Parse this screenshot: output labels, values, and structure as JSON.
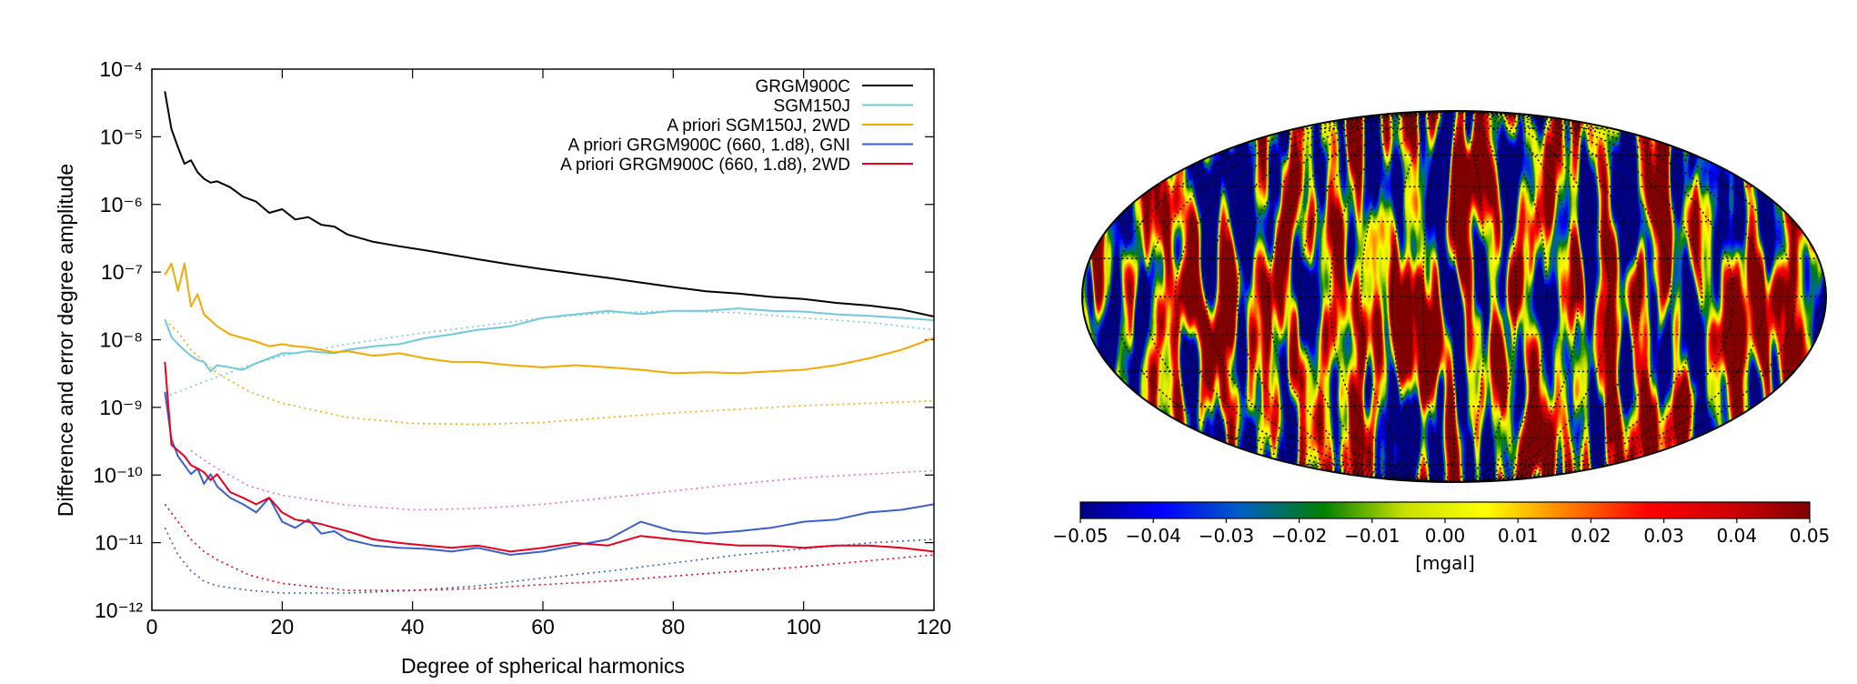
{
  "chart_data": [
    {
      "type": "line",
      "x_label": "Degree of spherical harmonics",
      "y_label": "Difference and error degree amplitude",
      "xlim": [
        0,
        120
      ],
      "xticks": [
        0,
        20,
        40,
        60,
        80,
        100,
        120
      ],
      "ylim": [
        1e-12,
        0.0001
      ],
      "log_y": true,
      "yticks": [
        {
          "value": 1e-12,
          "label": "10⁻¹²"
        },
        {
          "value": 1e-11,
          "label": "10⁻¹¹"
        },
        {
          "value": 1e-10,
          "label": "10⁻¹⁰"
        },
        {
          "value": 1e-09,
          "label": "10⁻⁹"
        },
        {
          "value": 1e-08,
          "label": "10⁻⁸"
        },
        {
          "value": 1e-07,
          "label": "10⁻⁷"
        },
        {
          "value": 1e-06,
          "label": "10⁻⁶"
        },
        {
          "value": 1e-05,
          "label": "10⁻⁵"
        },
        {
          "value": 0.0001,
          "label": "10⁻⁴"
        }
      ],
      "legend": "upper right",
      "series": [
        {
          "name": "GRGM900C",
          "color": "#000000",
          "dashed": false,
          "x": [
            2,
            3,
            4,
            5,
            6,
            7,
            8,
            9,
            10,
            12,
            14,
            16,
            18,
            20,
            22,
            24,
            26,
            28,
            30,
            34,
            38,
            42,
            46,
            50,
            55,
            60,
            65,
            70,
            75,
            80,
            85,
            90,
            95,
            100,
            105,
            110,
            115,
            120
          ],
          "values": [
            4.7e-05,
            1.3e-05,
            7e-06,
            4e-06,
            4.5e-06,
            3e-06,
            2.4e-06,
            2.1e-06,
            2.2e-06,
            1.8e-06,
            1.3e-06,
            1.1e-06,
            7.5e-07,
            8.5e-07,
            6e-07,
            6.5e-07,
            5e-07,
            4.7e-07,
            3.6e-07,
            2.8e-07,
            2.4e-07,
            2.1e-07,
            1.8e-07,
            1.55e-07,
            1.3e-07,
            1.1e-07,
            9.5e-08,
            8.2e-08,
            7e-08,
            6e-08,
            5.2e-08,
            4.8e-08,
            4.3e-08,
            4e-08,
            3.5e-08,
            3.2e-08,
            2.8e-08,
            2.2e-08
          ]
        },
        {
          "name": "SGM150J",
          "color": "#72c8dc",
          "dashed": false,
          "x": [
            2,
            3,
            4,
            5,
            6,
            7,
            8,
            9,
            10,
            12,
            14,
            16,
            18,
            20,
            22,
            24,
            26,
            28,
            30,
            34,
            38,
            42,
            46,
            50,
            55,
            60,
            65,
            70,
            75,
            80,
            85,
            90,
            95,
            100,
            105,
            110,
            115,
            120
          ],
          "values": [
            2e-08,
            1.1e-08,
            8.6e-09,
            7e-09,
            5.8e-09,
            5e-09,
            4.7e-09,
            3.4e-09,
            4.2e-09,
            3.9e-09,
            3.6e-09,
            4.5e-09,
            5.3e-09,
            6.3e-09,
            6.3e-09,
            6.8e-09,
            6.5e-09,
            6.3e-09,
            7.1e-09,
            8e-09,
            8.6e-09,
            1.06e-08,
            1.2e-08,
            1.4e-08,
            1.58e-08,
            2.1e-08,
            2.37e-08,
            2.67e-08,
            2.4e-08,
            2.67e-08,
            2.67e-08,
            2.9e-08,
            2.67e-08,
            2.6e-08,
            2.37e-08,
            2.25e-08,
            2.1e-08,
            1.94e-08
          ]
        },
        {
          "name": "A priori SGM150J, 2WD",
          "color": "#f5a800",
          "dashed": false,
          "x": [
            2,
            3,
            4,
            5,
            6,
            7,
            8,
            9,
            10,
            12,
            14,
            16,
            18,
            20,
            22,
            24,
            26,
            28,
            30,
            34,
            38,
            42,
            46,
            50,
            55,
            60,
            65,
            70,
            75,
            80,
            85,
            90,
            95,
            100,
            105,
            110,
            115,
            120
          ],
          "values": [
            9e-08,
            1.34e-07,
            5.3e-08,
            1.34e-07,
            3.1e-08,
            4.7e-08,
            2.37e-08,
            1.94e-08,
            1.58e-08,
            1.2e-08,
            1.06e-08,
            9.4e-09,
            8e-09,
            8.6e-09,
            8e-09,
            7.7e-09,
            7.1e-09,
            6.5e-09,
            6.8e-09,
            5.8e-09,
            6.3e-09,
            5.3e-09,
            4.7e-09,
            4.7e-09,
            4.2e-09,
            3.9e-09,
            4.2e-09,
            3.9e-09,
            3.6e-09,
            3.2e-09,
            3.3e-09,
            3.2e-09,
            3.4e-09,
            3.6e-09,
            4.2e-09,
            5.3e-09,
            7.1e-09,
            1.06e-08
          ]
        },
        {
          "name": "A priori GRGM900C (660, 1.d8), GNI",
          "color": "#3a5fcd",
          "dashed": false,
          "x": [
            2,
            3,
            4,
            5,
            6,
            7,
            8,
            9,
            10,
            12,
            14,
            16,
            18,
            20,
            22,
            24,
            26,
            28,
            30,
            34,
            38,
            42,
            46,
            50,
            55,
            60,
            65,
            70,
            75,
            80,
            85,
            90,
            95,
            100,
            105,
            110,
            115,
            120
          ],
          "values": [
            1.7e-09,
            3.4e-10,
            1.9e-10,
            1.4e-10,
            1.03e-10,
            1.25e-10,
            7.4e-11,
            1.03e-10,
            6.8e-11,
            4.6e-11,
            3.7e-11,
            2.8e-11,
            4.6e-11,
            2.04e-11,
            1.66e-11,
            2.2e-11,
            1.36e-11,
            1.48e-11,
            1.12e-11,
            9.1e-12,
            8.4e-12,
            8.1e-12,
            7.4e-12,
            8.4e-12,
            6.6e-12,
            7.4e-12,
            9.1e-12,
            1.12e-11,
            2.04e-11,
            1.48e-11,
            1.36e-11,
            1.48e-11,
            1.66e-11,
            2.04e-11,
            2.2e-11,
            2.8e-11,
            3.06e-11,
            3.7e-11
          ]
        },
        {
          "name": "A priori GRGM900C (660, 1.d8), 2WD",
          "color": "#e8001c",
          "dashed": false,
          "x": [
            2,
            3,
            4,
            5,
            6,
            7,
            8,
            9,
            10,
            12,
            14,
            16,
            18,
            20,
            22,
            24,
            26,
            28,
            30,
            34,
            38,
            42,
            46,
            50,
            55,
            60,
            65,
            70,
            75,
            80,
            85,
            90,
            95,
            100,
            105,
            110,
            115,
            120
          ],
          "values": [
            4.7e-09,
            2.8e-10,
            2.3e-10,
            1.9e-10,
            1.4e-10,
            1.25e-10,
            1.1e-10,
            8.4e-11,
            1.03e-10,
            5.6e-11,
            4.6e-11,
            3.7e-11,
            4.6e-11,
            2.8e-11,
            2.2e-11,
            2.04e-11,
            1.88e-11,
            1.66e-11,
            1.48e-11,
            1.12e-11,
            9.9e-12,
            9.1e-12,
            8.4e-12,
            9.1e-12,
            7.4e-12,
            8.4e-12,
            9.9e-12,
            9.1e-12,
            1.26e-11,
            1.12e-11,
            9.9e-12,
            9.1e-12,
            9.1e-12,
            8.4e-12,
            9.1e-12,
            9.1e-12,
            8.4e-12,
            7.4e-12
          ]
        },
        {
          "color": "#72c8dc",
          "dashed": true,
          "x": [
            2,
            4,
            6,
            8,
            10,
            15,
            20,
            30,
            40,
            50,
            60,
            70,
            80,
            90,
            100,
            110,
            120
          ],
          "values": [
            1.4e-09,
            1.7e-09,
            2e-09,
            2.4e-09,
            2.8e-09,
            4.2e-09,
            5.8e-09,
            8.6e-09,
            1.2e-08,
            1.58e-08,
            2.1e-08,
            2.5e-08,
            2.67e-08,
            2.5e-08,
            2.1e-08,
            1.8e-08,
            1.4e-08
          ]
        },
        {
          "color": "#f5a800",
          "dashed": true,
          "x": [
            2,
            4,
            6,
            8,
            10,
            15,
            20,
            30,
            40,
            50,
            60,
            70,
            80,
            90,
            100,
            110,
            120
          ],
          "values": [
            1.94e-08,
            1.3e-08,
            7.1e-09,
            4.7e-09,
            3.2e-09,
            1.7e-09,
            1.15e-09,
            7.1e-10,
            5.8e-10,
            5.6e-10,
            6e-10,
            7.1e-10,
            8.3e-10,
            9.4e-10,
            1.06e-09,
            1.15e-09,
            1.25e-09
          ]
        },
        {
          "color": "#e066e0",
          "dashed": true,
          "x": [
            6,
            8,
            10,
            15,
            20,
            30,
            40,
            50,
            60,
            70,
            80,
            90,
            100,
            110,
            120
          ],
          "values": [
            2.3e-10,
            1.66e-10,
            1.25e-10,
            6.8e-11,
            5e-11,
            3.6e-11,
            3.06e-11,
            3.2e-11,
            3.7e-11,
            4.6e-11,
            5.8e-11,
            7.4e-11,
            9.1e-11,
            1.03e-10,
            1.16e-10
          ]
        },
        {
          "color": "#3a5fcd",
          "dashed": true,
          "x": [
            2,
            4,
            6,
            8,
            10,
            15,
            20,
            30,
            40,
            50,
            60,
            70,
            80,
            90,
            100,
            110,
            120
          ],
          "values": [
            1.66e-11,
            6.6e-12,
            3.8e-12,
            2.7e-12,
            2.3e-12,
            1.97e-12,
            1.8e-12,
            1.8e-12,
            1.97e-12,
            2.3e-12,
            3e-12,
            3.8e-12,
            5e-12,
            6.6e-12,
            8.1e-12,
            9.9e-12,
            1.12e-11
          ]
        },
        {
          "color": "#e8001c",
          "dashed": true,
          "x": [
            2,
            4,
            6,
            8,
            10,
            15,
            20,
            30,
            40,
            50,
            60,
            70,
            80,
            90,
            100,
            110,
            120
          ],
          "values": [
            3.7e-11,
            2.04e-11,
            1.12e-11,
            7.4e-12,
            5.6e-12,
            3.3e-12,
            2.5e-12,
            1.97e-12,
            1.97e-12,
            2.1e-12,
            2.4e-12,
            2.7e-12,
            3.2e-12,
            3.8e-12,
            4.4e-12,
            5.4e-12,
            6.6e-12
          ]
        }
      ]
    },
    {
      "type": "map",
      "colorbar_label": "[mgal]",
      "clim": [
        -0.05,
        0.05
      ],
      "cticks": [
        {
          "value": -0.05,
          "label": "−0.05"
        },
        {
          "value": -0.04,
          "label": "−0.04"
        },
        {
          "value": -0.03,
          "label": "−0.03"
        },
        {
          "value": -0.02,
          "label": "−0.02"
        },
        {
          "value": -0.01,
          "label": "−0.01"
        },
        {
          "value": 0,
          "label": "0.00"
        },
        0.01,
        0.02,
        0.03,
        0.04,
        0.05
      ],
      "colormap": [
        "#000080",
        "#0000ff",
        "#0060c0",
        "#008000",
        "#c8e000",
        "#ffff00",
        "#ff8000",
        "#ff0000",
        "#d00000",
        "#800000"
      ]
    }
  ]
}
